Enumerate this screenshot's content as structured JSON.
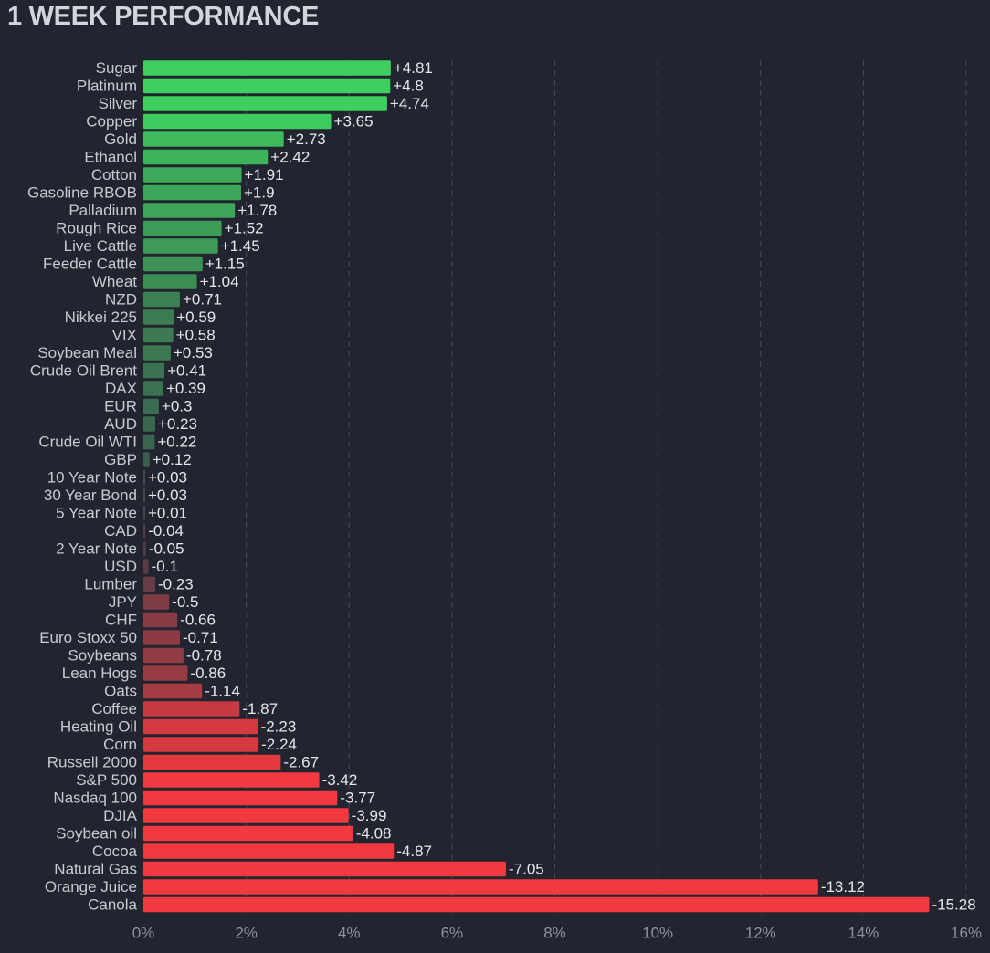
{
  "title": "1 WEEK PERFORMANCE",
  "chart_data": {
    "type": "bar",
    "orientation": "horizontal",
    "title": "1 WEEK PERFORMANCE",
    "value_unit": "%",
    "xlim": [
      0,
      16
    ],
    "x_ticks": [
      0,
      2,
      4,
      6,
      8,
      10,
      12,
      14,
      16
    ],
    "x_tick_labels": [
      "0%",
      "2%",
      "4%",
      "6%",
      "8%",
      "10%",
      "12%",
      "14%",
      "16%"
    ],
    "grid": "vertical dashed",
    "bar_length": "absolute value",
    "colors": {
      "positive": "#3ecf5f",
      "negative": "#f2393f",
      "neutral": "#3a3d49"
    },
    "categories": [
      "Sugar",
      "Platinum",
      "Silver",
      "Copper",
      "Gold",
      "Ethanol",
      "Cotton",
      "Gasoline RBOB",
      "Palladium",
      "Rough Rice",
      "Live Cattle",
      "Feeder Cattle",
      "Wheat",
      "NZD",
      "Nikkei 225",
      "VIX",
      "Soybean Meal",
      "Crude Oil Brent",
      "DAX",
      "EUR",
      "AUD",
      "Crude Oil WTI",
      "GBP",
      "10 Year Note",
      "30 Year Bond",
      "5 Year Note",
      "CAD",
      "2 Year Note",
      "USD",
      "Lumber",
      "JPY",
      "CHF",
      "Euro Stoxx 50",
      "Soybeans",
      "Lean Hogs",
      "Oats",
      "Coffee",
      "Heating Oil",
      "Corn",
      "Russell 2000",
      "S&P 500",
      "Nasdaq 100",
      "DJIA",
      "Soybean oil",
      "Cocoa",
      "Natural Gas",
      "Orange Juice",
      "Canola"
    ],
    "values": [
      4.81,
      4.8,
      4.74,
      3.65,
      2.73,
      2.42,
      1.91,
      1.9,
      1.78,
      1.52,
      1.45,
      1.15,
      1.04,
      0.71,
      0.59,
      0.58,
      0.53,
      0.41,
      0.39,
      0.3,
      0.23,
      0.22,
      0.12,
      0.03,
      0.03,
      0.01,
      -0.04,
      -0.05,
      -0.1,
      -0.23,
      -0.5,
      -0.66,
      -0.71,
      -0.78,
      -0.86,
      -1.14,
      -1.87,
      -2.23,
      -2.24,
      -2.67,
      -3.42,
      -3.77,
      -3.99,
      -4.08,
      -4.87,
      -7.05,
      -13.12,
      -15.28
    ],
    "value_labels": [
      "+4.81",
      "+4.8",
      "+4.74",
      "+3.65",
      "+2.73",
      "+2.42",
      "+1.91",
      "+1.9",
      "+1.78",
      "+1.52",
      "+1.45",
      "+1.15",
      "+1.04",
      "+0.71",
      "+0.59",
      "+0.58",
      "+0.53",
      "+0.41",
      "+0.39",
      "+0.3",
      "+0.23",
      "+0.22",
      "+0.12",
      "+0.03",
      "+0.03",
      "+0.01",
      "-0.04",
      "-0.05",
      "-0.1",
      "-0.23",
      "-0.5",
      "-0.66",
      "-0.71",
      "-0.78",
      "-0.86",
      "-1.14",
      "-1.87",
      "-2.23",
      "-2.24",
      "-2.67",
      "-3.42",
      "-3.77",
      "-3.99",
      "-4.08",
      "-4.87",
      "-7.05",
      "-13.12",
      "-15.28"
    ]
  }
}
